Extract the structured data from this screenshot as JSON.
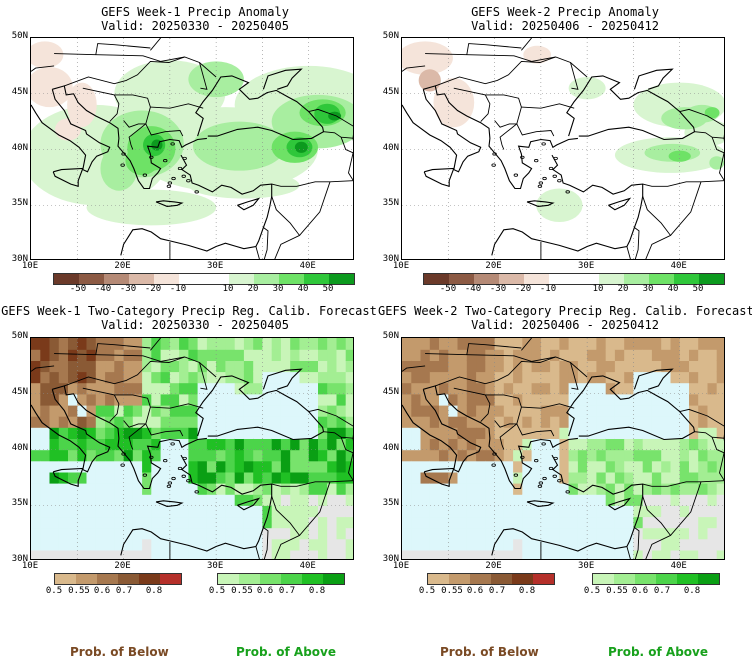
{
  "panels": [
    {
      "id": "p1",
      "title": "GEFS Week-1 Precip Anomaly",
      "valid": "Valid: 20250330 - 20250405",
      "kind": "anomaly",
      "variant": 1
    },
    {
      "id": "p2",
      "title": "GEFS Week-2 Precip Anomaly",
      "valid": "Valid: 20250406 - 20250412",
      "kind": "anomaly",
      "variant": 2
    },
    {
      "id": "p3",
      "title": "GEFS Week-1 Two-Category Precip Reg. Calib. Forecast",
      "valid": "Valid: 20250330 - 20250405",
      "kind": "prob",
      "variant": 1
    },
    {
      "id": "p4",
      "title": "GEFS Week-2 Two-Category Precip Reg. Calib. Forecast",
      "valid": "Valid: 20250406 - 20250412",
      "kind": "prob",
      "variant": 2
    }
  ],
  "lat_labels": [
    "50N",
    "45N",
    "40N",
    "35N",
    "30N"
  ],
  "lon_labels": [
    "10E",
    "20E",
    "30E",
    "40E"
  ],
  "anomaly_colorbar": {
    "colors": [
      "#6b3a2a",
      "#8c5a44",
      "#b58a76",
      "#dbb9a8",
      "#f5e4da",
      "#ffffff",
      "#ffffff",
      "#d8f5d0",
      "#a8eea0",
      "#6ee266",
      "#2fc73a",
      "#0c9a1e"
    ],
    "labels": [
      "-50",
      "-40",
      "-30",
      "-20",
      "-10",
      "10",
      "20",
      "30",
      "40",
      "50"
    ]
  },
  "below_colorbar": {
    "colors": [
      "#d9b98c",
      "#c39a6c",
      "#a6784f",
      "#8a5a35",
      "#7a3a1a",
      "#b5302a"
    ],
    "labels": [
      "0.5",
      "0.55",
      "0.6",
      "0.7",
      "0.8"
    ]
  },
  "above_colorbar": {
    "colors": [
      "#c8f5b8",
      "#a3ee93",
      "#78e36c",
      "#4cd44a",
      "#20c024",
      "#0a9f14"
    ],
    "labels": [
      "0.5",
      "0.55",
      "0.6",
      "0.7",
      "0.8"
    ]
  },
  "footer": {
    "below": "Prob. of Below",
    "above": "Prob. of Above",
    "below_color": "#7a4a24",
    "above_color": "#18a11c"
  },
  "colors": {
    "sea": "#ddf7fb",
    "land_na": "#e6e6e6",
    "grid": "#8a8a8a"
  }
}
